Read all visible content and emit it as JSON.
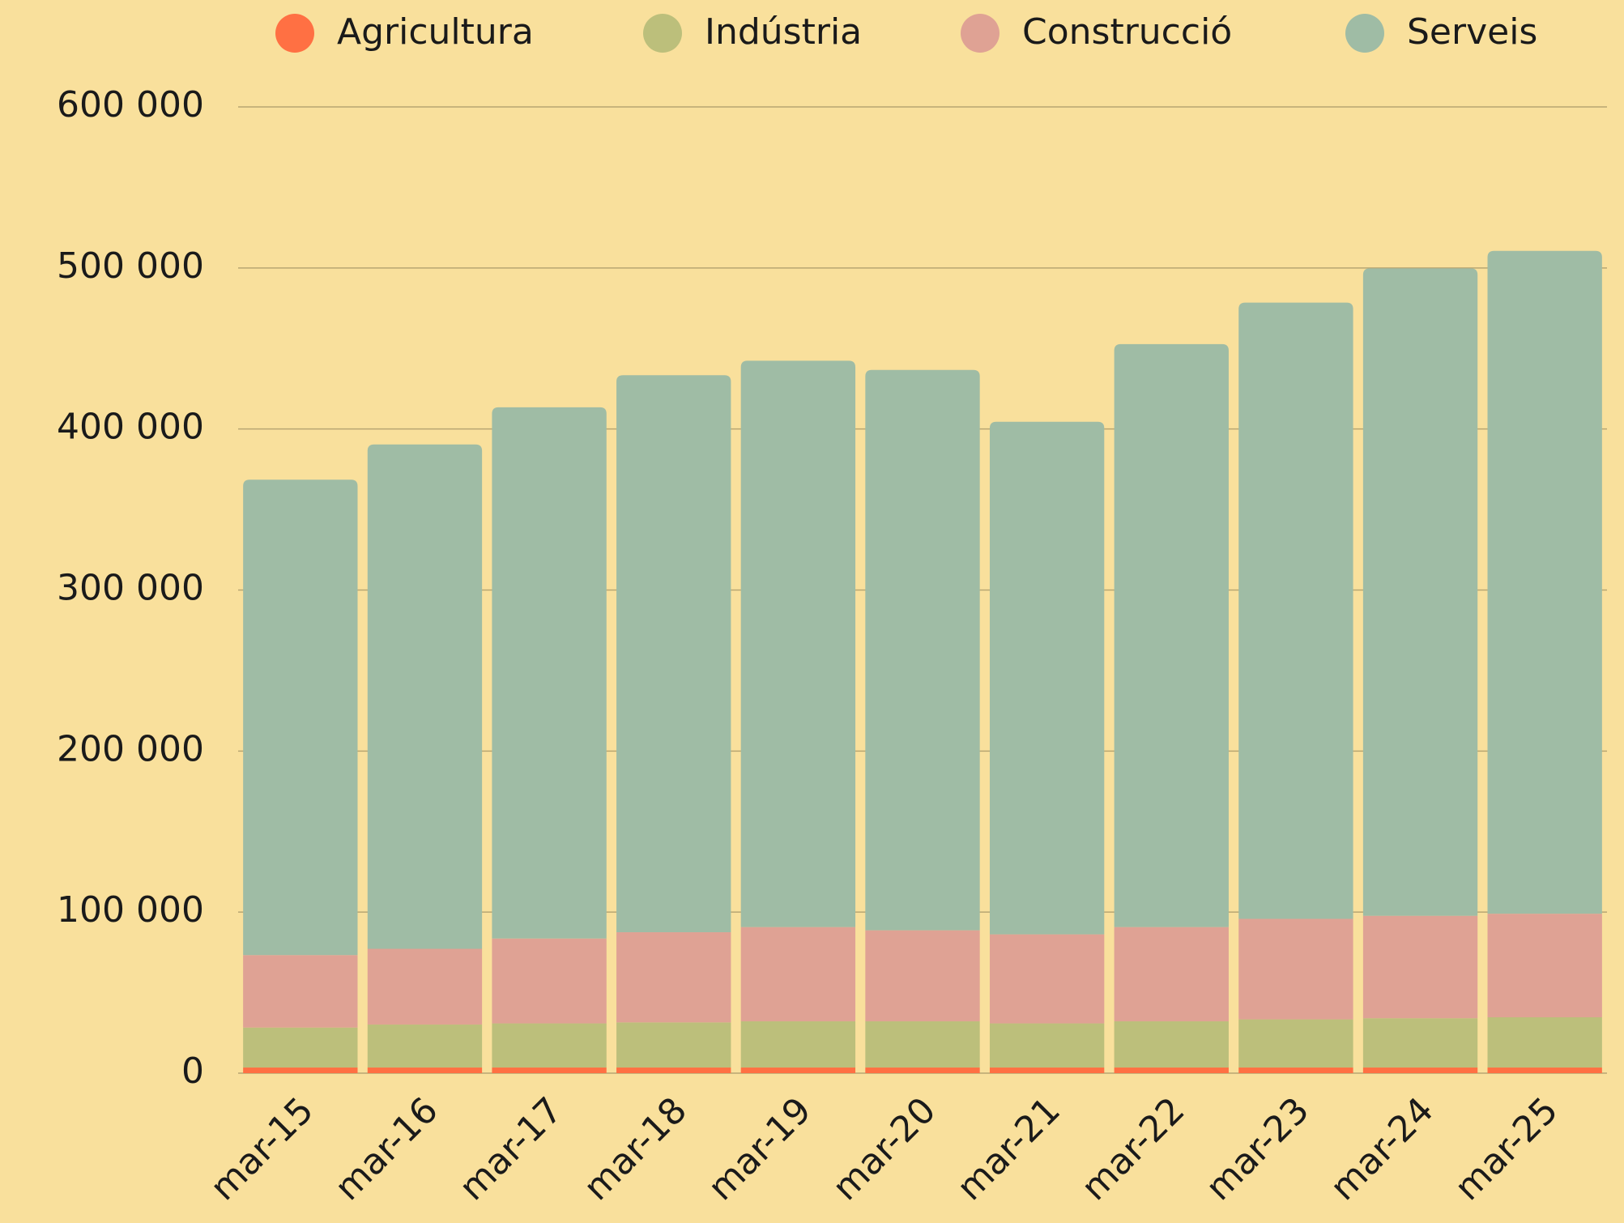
{
  "chart_data": {
    "type": "stacked_bar",
    "categories": [
      "mar-15",
      "mar-16",
      "mar-17",
      "mar-18",
      "mar-19",
      "mar-20",
      "mar-21",
      "mar-22",
      "mar-23",
      "mar-24",
      "mar-25"
    ],
    "series": [
      {
        "name": "Agricultura",
        "color": "#ff7043",
        "values": [
          3500,
          3500,
          3500,
          3500,
          3500,
          3500,
          3500,
          3500,
          3500,
          3500,
          3500
        ]
      },
      {
        "name": "Indústria",
        "color": "#bcbf7b",
        "values": [
          24800,
          26700,
          27400,
          28000,
          28700,
          28700,
          27400,
          28700,
          29900,
          30600,
          31200
        ]
      },
      {
        "name": "Construcció",
        "color": "#dfa294",
        "values": [
          45000,
          47000,
          52700,
          56000,
          58500,
          56500,
          55300,
          58500,
          62400,
          63600,
          64300
        ]
      },
      {
        "name": "Serveis",
        "color": "#9fbca5",
        "values": [
          295200,
          313200,
          329900,
          345900,
          351700,
          348000,
          318300,
          362000,
          382700,
          402000,
          411600
        ]
      }
    ],
    "ylim": [
      0,
      600000
    ],
    "yticks": [
      0,
      {
        "value": 100000,
        "label": "100 000"
      },
      {
        "value": 200000,
        "label": "200 000"
      },
      {
        "value": 300000,
        "label": "300 000"
      },
      {
        "value": 400000,
        "label": "400 000"
      },
      {
        "value": 500000,
        "label": "500 000"
      },
      {
        "value": 600000,
        "label": "600 000"
      }
    ],
    "grid": true,
    "legend": "top"
  }
}
